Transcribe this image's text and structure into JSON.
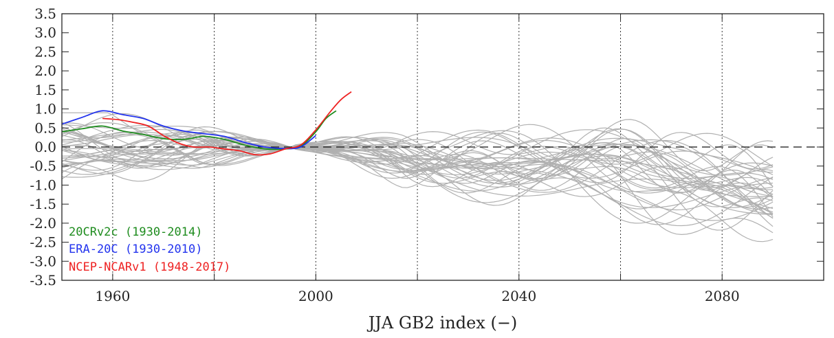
{
  "chart_data": {
    "type": "line",
    "title": "",
    "xlabel": "JJA GB2 index (−)",
    "ylabel": "",
    "xlim": [
      1950,
      2100
    ],
    "ylim": [
      -3.5,
      3.5
    ],
    "x_ticks": [
      1960,
      2000,
      2040,
      2080
    ],
    "x_tick_labels": [
      "1960",
      "2000",
      "2040",
      "2080"
    ],
    "x_minor_ticks": [
      1980,
      2020,
      2060,
      2100
    ],
    "y_ticks": [
      3.5,
      3.0,
      2.5,
      2.0,
      1.5,
      1.0,
      0.5,
      0.0,
      -0.5,
      -1.0,
      -1.5,
      -2.0,
      -2.5,
      -3.0,
      -3.5
    ],
    "y_tick_labels": [
      "3.5",
      "3.0",
      "2.5",
      "2.0",
      "1.5",
      "1.0",
      "0.5",
      "0.0",
      "-0.5",
      "-1.0",
      "-1.5",
      "-2.0",
      "-2.5",
      "-3.0",
      "-3.5"
    ],
    "grid": "vertical dotted at every 20 years",
    "zero_line": "dashed",
    "legend_position": "bottom-left",
    "series": [
      {
        "name": "20CRv2c (1930-2014)",
        "color": "#1e8c1e",
        "x": [
          1950,
          1954,
          1958,
          1962,
          1966,
          1970,
          1974,
          1978,
          1982,
          1986,
          1990,
          1994,
          1997,
          2000,
          2002,
          2004
        ],
        "y": [
          0.4,
          0.48,
          0.55,
          0.42,
          0.33,
          0.22,
          0.2,
          0.28,
          0.2,
          0.05,
          -0.05,
          -0.05,
          0.02,
          0.4,
          0.75,
          0.95
        ]
      },
      {
        "name": "ERA-20C (1930-2010)",
        "color": "#2233ee",
        "x": [
          1950,
          1954,
          1958,
          1962,
          1966,
          1970,
          1974,
          1978,
          1982,
          1986,
          1990,
          1994,
          1997,
          2000
        ],
        "y": [
          0.6,
          0.78,
          0.95,
          0.85,
          0.75,
          0.55,
          0.42,
          0.35,
          0.28,
          0.12,
          0.0,
          -0.04,
          0.0,
          0.3
        ]
      },
      {
        "name": "NCEP-NCARv1 (1948-2017)",
        "color": "#ee2222",
        "x": [
          1958,
          1961,
          1964,
          1967,
          1970,
          1973,
          1976,
          1979,
          1982,
          1985,
          1988,
          1991,
          1994,
          1997,
          2000,
          2003,
          2005,
          2007
        ],
        "y": [
          0.75,
          0.72,
          0.65,
          0.55,
          0.3,
          0.1,
          0.0,
          0.0,
          -0.05,
          -0.1,
          -0.2,
          -0.18,
          -0.05,
          0.05,
          0.45,
          0.95,
          1.25,
          1.45
        ]
      }
    ],
    "background_series": {
      "color": "#b0b0b0",
      "count": 40,
      "x_range": [
        1950,
        2090
      ],
      "note_anchor": 1995
    }
  }
}
